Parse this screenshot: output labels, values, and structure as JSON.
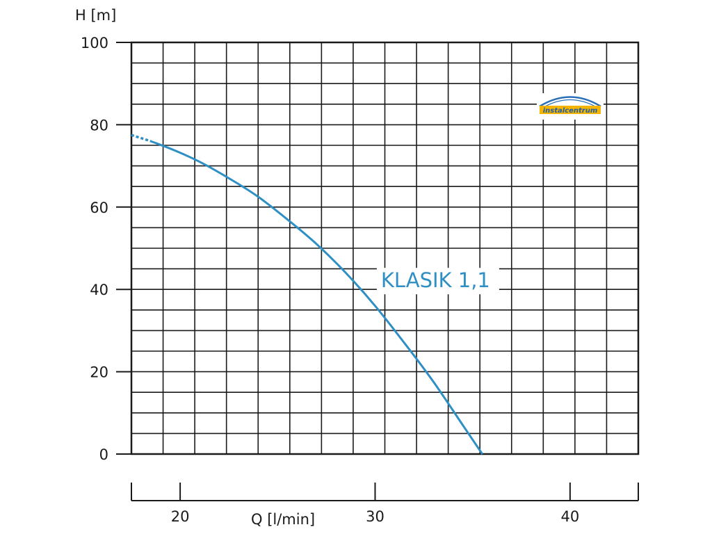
{
  "chart_data": {
    "type": "line",
    "title": "",
    "xlabel": "Q [l/min]",
    "ylabel": "H [m]",
    "xlim": [
      17.5,
      43.5
    ],
    "ylim": [
      0,
      100
    ],
    "x_ticks": [
      20,
      30,
      40
    ],
    "y_ticks": [
      0,
      20,
      40,
      60,
      80,
      100
    ],
    "grid": true,
    "series": [
      {
        "name": "KLASIK 1,1",
        "color": "#2e8fc4",
        "x": [
          17.5,
          18.5,
          19.7,
          21.0,
          22.5,
          24.0,
          25.5,
          27.0,
          28.5,
          30.0,
          31.5,
          33.0,
          34.5,
          35.5
        ],
        "y": [
          77.5,
          76.0,
          73.8,
          71.0,
          67.0,
          62.5,
          57.0,
          51.0,
          44.0,
          36.0,
          27.0,
          17.5,
          7.0,
          0.0
        ],
        "dashed_until_x": 19.0
      }
    ],
    "series_label": {
      "text": "KLASIK 1,1",
      "x": 30.3,
      "y": 40.5
    }
  },
  "logo": {
    "text": "instalcentrum",
    "colors": {
      "arc": "#2a6fb8",
      "text": "#1f5fa8",
      "accent": "#f5b400"
    }
  }
}
